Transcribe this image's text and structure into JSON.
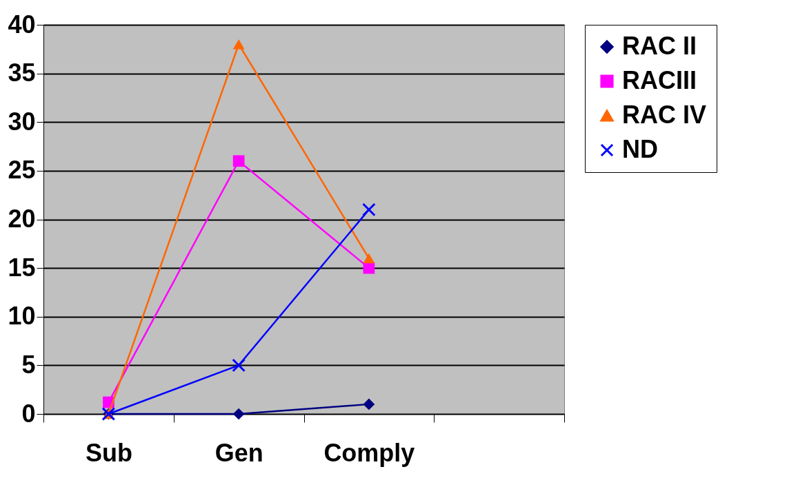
{
  "chart_data": {
    "type": "line",
    "categories": [
      "Sub",
      "Gen",
      "Comply",
      null
    ],
    "series": [
      {
        "name": "RAC II",
        "color": "#000080",
        "marker": "diamond",
        "values": [
          0,
          0,
          1,
          null
        ]
      },
      {
        "name": "RACIII",
        "color": "#ff00ff",
        "marker": "square",
        "values": [
          1.2,
          26,
          15,
          null
        ]
      },
      {
        "name": "RAC IV",
        "color": "#ff6600",
        "marker": "triangle",
        "values": [
          0,
          38,
          16,
          null
        ]
      },
      {
        "name": "ND",
        "color": "#0000ff",
        "marker": "cross",
        "values": [
          0,
          5,
          21,
          null
        ]
      }
    ],
    "ylim": [
      0,
      40
    ],
    "yticks": [
      0,
      5,
      10,
      15,
      20,
      25,
      30,
      35,
      40
    ],
    "grid": "y",
    "legend": "right"
  }
}
